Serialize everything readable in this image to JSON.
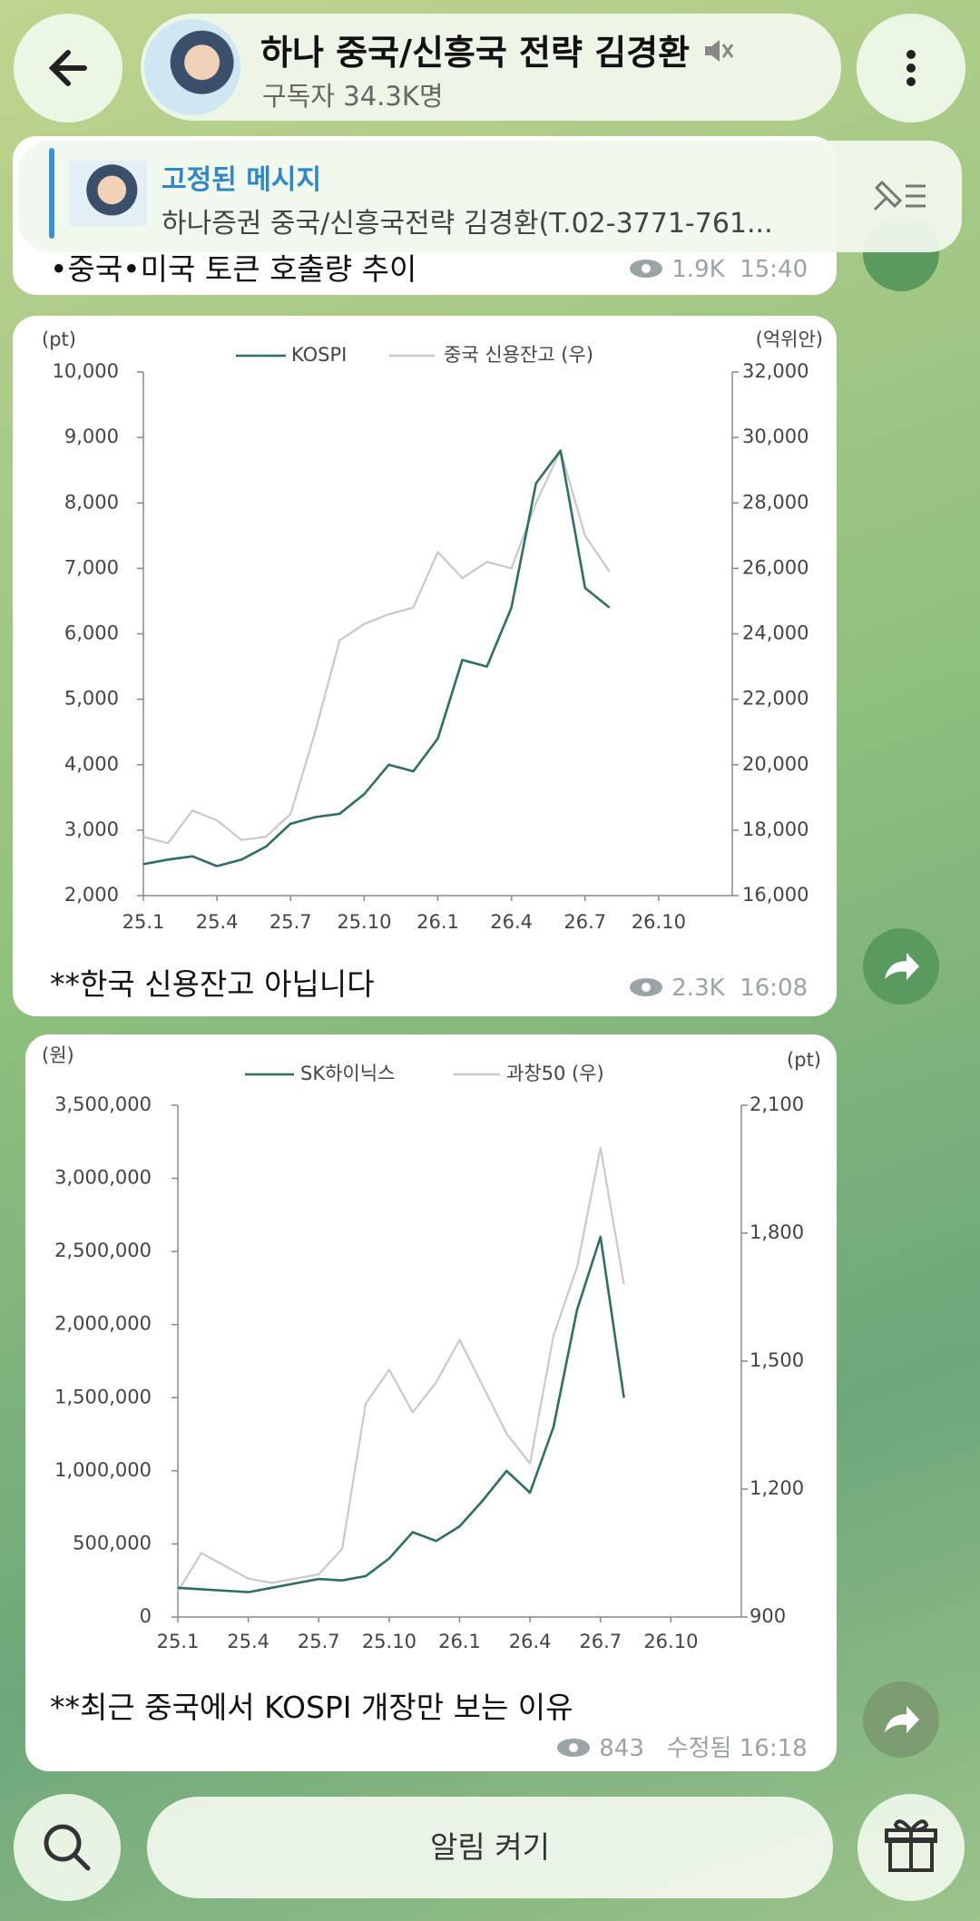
{
  "header": {
    "title": "하나 중국/신흥국 전략 김경환",
    "subtitle": "구독자 34.3K명"
  },
  "pinned": {
    "label": "고정된 메시지",
    "text": "하나증권 중국/신흥국전략 김경환(T.02-3771-761..."
  },
  "messages": [
    {
      "text": "•중국•미국 토큰 호출량 추이",
      "views": "1.9K",
      "time": "15:40"
    },
    {
      "text": "**한국 신용잔고 아닙니다",
      "views": "2.3K",
      "time": "16:08"
    },
    {
      "text": "**최근 중국에서 KOSPI 개장만 보는 이유",
      "views": "843",
      "edited": "수정됨",
      "time": "16:18"
    }
  ],
  "chart_data": [
    {
      "type": "line",
      "y_label": "(pt)",
      "y2_label": "(억위안)",
      "categories": [
        "25.1",
        null,
        null,
        "25.4",
        null,
        null,
        "25.7",
        null,
        null,
        "25.10",
        null,
        null,
        "26.1",
        null,
        null,
        "26.4",
        null,
        null,
        "26.7",
        null,
        null,
        "26.10"
      ],
      "series": [
        {
          "name": "KOSPI",
          "color": "#2e6e66",
          "values": [
            2480,
            2550,
            2600,
            2450,
            2550,
            2750,
            3100,
            3200,
            3250,
            3550,
            4000,
            3900,
            4400,
            5600,
            5500,
            6400,
            8300,
            8800,
            6700,
            6400,
            null,
            null
          ]
        },
        {
          "name": "중국 신용잔고 (우)",
          "color": "#c9c9c9",
          "axis": "y2",
          "values": [
            17800,
            17600,
            18600,
            18300,
            17700,
            17800,
            18500,
            21000,
            23800,
            24300,
            24600,
            24800,
            26500,
            25700,
            26200,
            26000,
            28000,
            29600,
            27000,
            25900,
            null,
            null
          ]
        }
      ],
      "ylim": [
        2000,
        10000
      ],
      "yticks": [
        {
          "value": 2000,
          "label": "2,000"
        },
        {
          "value": 3000,
          "label": "3,000"
        },
        {
          "value": 4000,
          "label": "4,000"
        },
        {
          "value": 5000,
          "label": "5,000"
        },
        {
          "value": 6000,
          "label": "6,000"
        },
        {
          "value": 7000,
          "label": "7,000"
        },
        {
          "value": 8000,
          "label": "8,000"
        },
        {
          "value": 9000,
          "label": "9,000"
        },
        {
          "value": 10000,
          "label": "10,000"
        }
      ],
      "y2lim": [
        16000,
        32000
      ],
      "y2ticks": [
        {
          "value": 16000,
          "label": "16,000"
        },
        {
          "value": 18000,
          "label": "18,000"
        },
        {
          "value": 20000,
          "label": "20,000"
        },
        {
          "value": 22000,
          "label": "22,000"
        },
        {
          "value": 24000,
          "label": "24,000"
        },
        {
          "value": 26000,
          "label": "26,000"
        },
        {
          "value": 28000,
          "label": "28,000"
        },
        {
          "value": 30000,
          "label": "30,000"
        },
        {
          "value": 32000,
          "label": "32,000"
        }
      ],
      "grid": false
    },
    {
      "type": "line",
      "y_label": "(원)",
      "y2_label": "(pt)",
      "categories": [
        "25.1",
        null,
        null,
        "25.4",
        null,
        null,
        "25.7",
        null,
        null,
        "25.10",
        null,
        null,
        "26.1",
        null,
        null,
        "26.4",
        null,
        null,
        "26.7",
        null,
        null,
        "26.10"
      ],
      "series": [
        {
          "name": "SK하이닉스",
          "color": "#2e6e66",
          "values": [
            200000,
            190000,
            180000,
            170000,
            200000,
            230000,
            260000,
            250000,
            280000,
            400000,
            580000,
            520000,
            620000,
            800000,
            1000000,
            850000,
            1300000,
            2100000,
            2600000,
            1500000,
            null,
            null
          ]
        },
        {
          "name": "과창50 (우)",
          "color": "#c9c9c9",
          "axis": "y2",
          "values": [
            960,
            1050,
            1020,
            990,
            980,
            990,
            1000,
            1060,
            1400,
            1480,
            1380,
            1450,
            1550,
            1440,
            1330,
            1260,
            1560,
            1720,
            2000,
            1680,
            null,
            null
          ]
        }
      ],
      "ylim": [
        0,
        3500000
      ],
      "yticks": [
        0,
        {
          "value": 500000,
          "label": "500,000"
        },
        {
          "value": 1000000,
          "label": "1,000,000"
        },
        {
          "value": 1500000,
          "label": "1,500,000"
        },
        {
          "value": 2000000,
          "label": "2,000,000"
        },
        {
          "value": 2500000,
          "label": "2,500,000"
        },
        {
          "value": 3000000,
          "label": "3,000,000"
        },
        {
          "value": 3500000,
          "label": "3,500,000"
        }
      ],
      "y2lim": [
        900,
        2100
      ],
      "y2ticks": [
        900,
        {
          "value": 1200,
          "label": "1,200"
        },
        {
          "value": 1500,
          "label": "1,500"
        },
        {
          "value": 1800,
          "label": "1,800"
        },
        {
          "value": 2100,
          "label": "2,100"
        }
      ],
      "grid": false
    }
  ],
  "footer": {
    "button": "알림 켜기"
  }
}
